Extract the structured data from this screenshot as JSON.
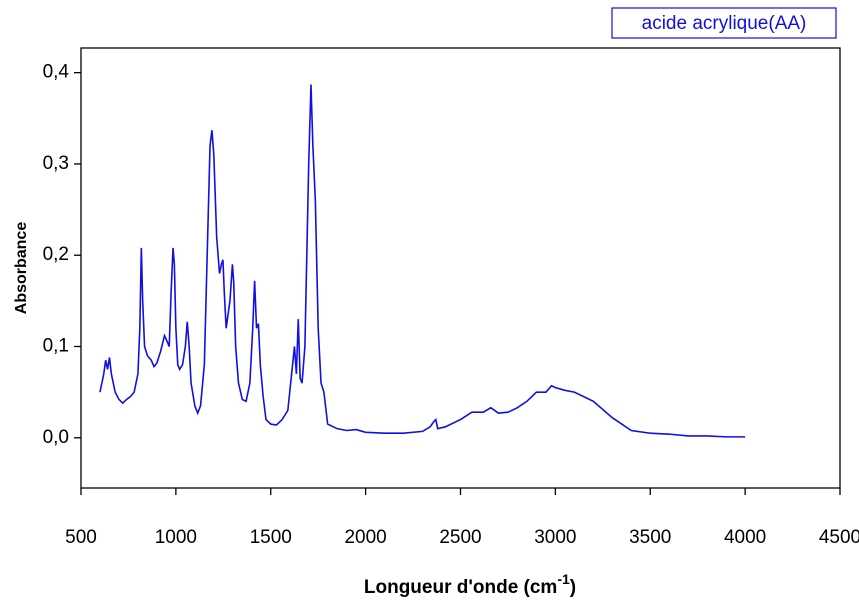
{
  "chart_data": {
    "type": "line",
    "xlabel": {
      "text": "Longueur d'onde (cm",
      "sup": "-1",
      "end": ")"
    },
    "ylabel": "Absorbance",
    "xlim": [
      500,
      4500
    ],
    "ylim": [
      -0.055,
      0.427
    ],
    "xticks": [
      500,
      1000,
      1500,
      2000,
      2500,
      3000,
      3500,
      4000,
      4500
    ],
    "yticks": [
      {
        "value": 0,
        "label": "0,0"
      },
      {
        "value": 0.1,
        "label": "0,1"
      },
      {
        "value": 0.2,
        "label": "0,2"
      },
      {
        "value": 0.3,
        "label": "0,3"
      },
      {
        "value": 0.4,
        "label": "0,4"
      }
    ],
    "legend": "upper right",
    "x": [
      600,
      610,
      620,
      630,
      640,
      650,
      660,
      680,
      700,
      720,
      740,
      760,
      780,
      800,
      810,
      818,
      825,
      835,
      850,
      870,
      885,
      900,
      920,
      940,
      955,
      965,
      975,
      985,
      992,
      1000,
      1010,
      1020,
      1035,
      1050,
      1060,
      1070,
      1080,
      1100,
      1115,
      1130,
      1150,
      1165,
      1180,
      1190,
      1200,
      1215,
      1230,
      1240,
      1248,
      1255,
      1265,
      1275,
      1285,
      1298,
      1305,
      1315,
      1330,
      1350,
      1370,
      1390,
      1405,
      1415,
      1425,
      1435,
      1445,
      1460,
      1475,
      1500,
      1530,
      1560,
      1590,
      1610,
      1625,
      1635,
      1645,
      1655,
      1665,
      1680,
      1700,
      1712,
      1722,
      1735,
      1750,
      1765,
      1780,
      1800,
      1850,
      1900,
      1950,
      2000,
      2100,
      2200,
      2300,
      2340,
      2360,
      2370,
      2380,
      2420,
      2500,
      2560,
      2620,
      2660,
      2700,
      2750,
      2800,
      2850,
      2900,
      2950,
      2980,
      3000,
      3050,
      3100,
      3200,
      3300,
      3400,
      3500,
      3600,
      3700,
      3800,
      3900,
      4000
    ],
    "series": [
      {
        "name": "acide acrylique(AA)",
        "color": "#1010e0",
        "values": [
          0.05,
          0.06,
          0.07,
          0.085,
          0.075,
          0.088,
          0.07,
          0.05,
          0.042,
          0.038,
          0.042,
          0.045,
          0.05,
          0.07,
          0.12,
          0.208,
          0.15,
          0.1,
          0.09,
          0.085,
          0.078,
          0.082,
          0.095,
          0.112,
          0.105,
          0.1,
          0.16,
          0.208,
          0.19,
          0.12,
          0.08,
          0.075,
          0.08,
          0.1,
          0.127,
          0.1,
          0.06,
          0.035,
          0.027,
          0.035,
          0.08,
          0.2,
          0.32,
          0.337,
          0.31,
          0.22,
          0.18,
          0.19,
          0.195,
          0.16,
          0.12,
          0.135,
          0.15,
          0.19,
          0.17,
          0.1,
          0.06,
          0.042,
          0.04,
          0.06,
          0.12,
          0.172,
          0.12,
          0.125,
          0.08,
          0.045,
          0.02,
          0.015,
          0.014,
          0.02,
          0.03,
          0.07,
          0.1,
          0.07,
          0.13,
          0.065,
          0.06,
          0.1,
          0.3,
          0.387,
          0.32,
          0.26,
          0.12,
          0.06,
          0.05,
          0.015,
          0.01,
          0.008,
          0.009,
          0.006,
          0.005,
          0.005,
          0.007,
          0.012,
          0.018,
          0.02,
          0.01,
          0.012,
          0.02,
          0.028,
          0.028,
          0.033,
          0.027,
          0.028,
          0.033,
          0.04,
          0.05,
          0.05,
          0.057,
          0.055,
          0.052,
          0.05,
          0.04,
          0.022,
          0.008,
          0.005,
          0.004,
          0.002,
          0.002,
          0.001,
          0.001
        ]
      }
    ]
  }
}
